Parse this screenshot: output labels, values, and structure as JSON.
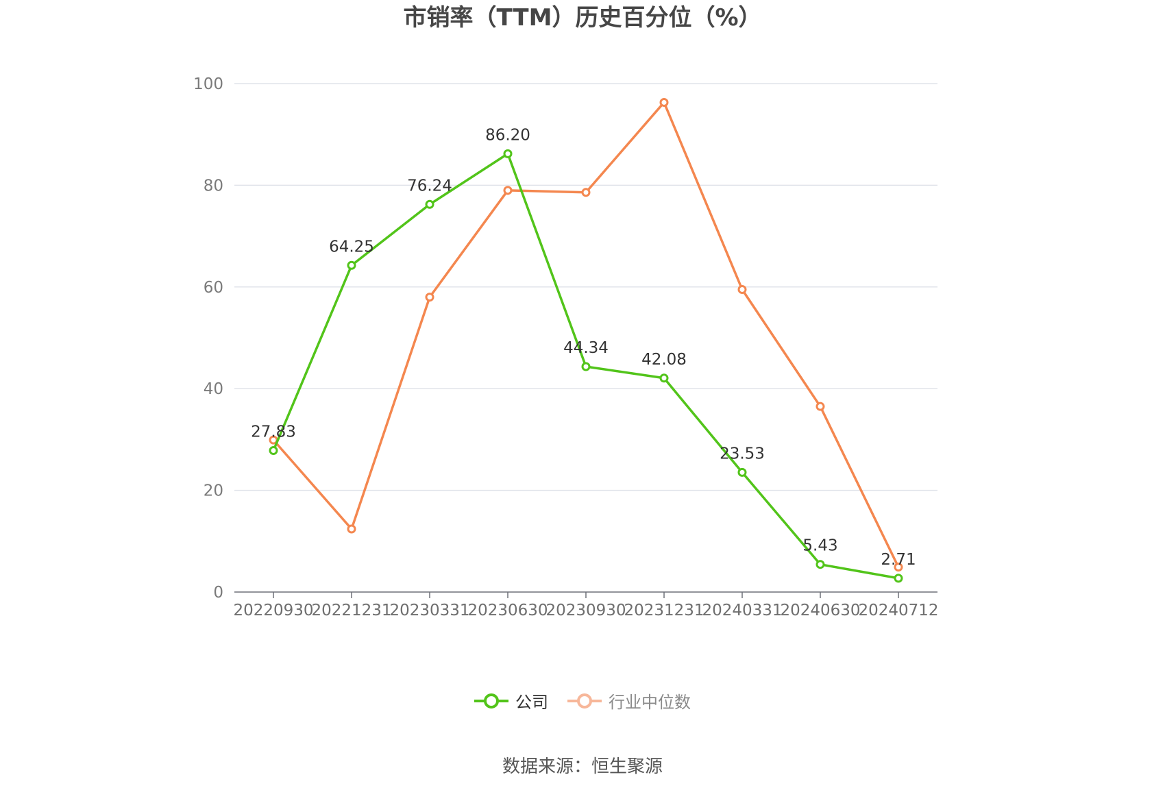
{
  "title": "市销率（TTM）历史百分位（%）",
  "source": "数据来源：恒生聚源",
  "chart_data": {
    "type": "line",
    "categories": [
      "20220930",
      "20221231",
      "20230331",
      "20230630",
      "20230930",
      "20231231",
      "20240331",
      "20240630",
      "20240712"
    ],
    "ylim": [
      0,
      100
    ],
    "yticks": [
      0,
      20,
      40,
      60,
      80,
      100
    ],
    "grid": true,
    "legend_position": "bottom-center",
    "series": [
      {
        "name": "公司",
        "color": "#52c41a",
        "values": [
          27.83,
          64.25,
          76.24,
          86.2,
          44.34,
          42.08,
          23.53,
          5.43,
          2.71
        ],
        "labels": [
          "27.83",
          "64.25",
          "76.24",
          "86.20",
          "44.34",
          "42.08",
          "23.53",
          "5.43",
          "2.71"
        ]
      },
      {
        "name": "行业中位数",
        "color": "#f4874f",
        "legend_color": "#f7b79a",
        "values": [
          29.9,
          12.4,
          58.0,
          79.0,
          78.6,
          96.3,
          59.5,
          36.5,
          4.9
        ]
      }
    ]
  }
}
